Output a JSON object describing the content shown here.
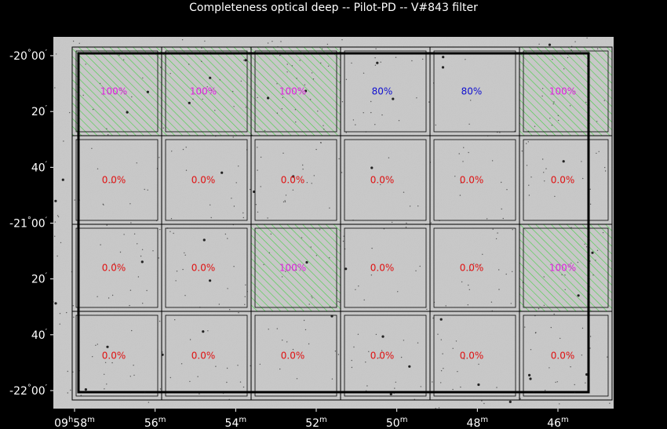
{
  "chart_data": {
    "type": "heatmap",
    "title": "Completeness optical deep -- Pilot-PD -- V#843 filter",
    "x_axis": {
      "ticks": [
        {
          "value": 58,
          "hour": "09",
          "label": "58"
        },
        {
          "value": 56,
          "label": "56"
        },
        {
          "value": 54,
          "label": "54"
        },
        {
          "value": 52,
          "label": "52"
        },
        {
          "value": 50,
          "label": "50"
        },
        {
          "value": 48,
          "label": "48"
        },
        {
          "value": 46,
          "label": "46"
        }
      ],
      "hour_unit": "h",
      "minute_unit": "m"
    },
    "y_axis": {
      "ticks": [
        {
          "value": -20.0,
          "deg": "-20",
          "min": "00"
        },
        {
          "value": -20.3333,
          "min": "20"
        },
        {
          "value": -20.6667,
          "min": "40"
        },
        {
          "value": -21.0,
          "deg": "-21",
          "min": "00"
        },
        {
          "value": -21.3333,
          "min": "20"
        },
        {
          "value": -21.6667,
          "min": "40"
        },
        {
          "value": -22.0,
          "deg": "-22",
          "min": "00"
        }
      ],
      "deg_unit": "°",
      "min_unit": "′"
    },
    "grid": {
      "rows": 4,
      "cols": 6,
      "cells": [
        [
          "100%",
          "100%",
          "100%",
          "80%",
          "80%",
          "100%"
        ],
        [
          "0.0%",
          "0.0%",
          "0.0%",
          "0.0%",
          "0.0%",
          "0.0%"
        ],
        [
          "0.0%",
          "0.0%",
          "100%",
          "0.0%",
          "0.0%",
          "100%"
        ],
        [
          "0.0%",
          "0.0%",
          "0.0%",
          "0.0%",
          "0.0%",
          "0.0%"
        ]
      ],
      "hatched": [
        [
          true,
          true,
          true,
          false,
          false,
          true
        ],
        [
          false,
          false,
          false,
          false,
          false,
          false
        ],
        [
          false,
          false,
          true,
          false,
          false,
          true
        ],
        [
          false,
          false,
          false,
          false,
          false,
          false
        ]
      ]
    },
    "colors": {
      "full": "#e020e0",
      "partial": "#1010d0",
      "zero": "#e01010",
      "hatch": "#30d030",
      "background": "#000000",
      "image": "#c8c8c8",
      "axis_text": "#ffffff"
    }
  }
}
